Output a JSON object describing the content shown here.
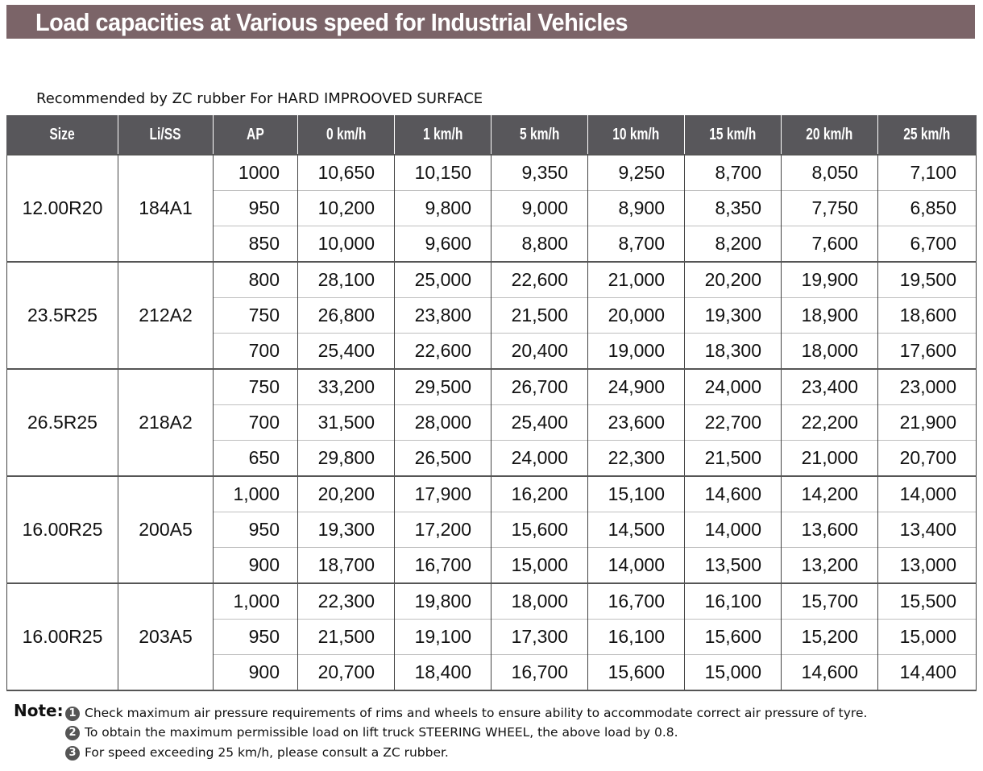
{
  "title": "Load capacities at Various speed for Industrial Vehicles",
  "subtitle": "Recommended by ZC rubber For HARD IMPROOVED SURFACE",
  "colors": {
    "title_bar": "#7b6468",
    "header_bg": "#58575b"
  },
  "table": {
    "headers": [
      "Size",
      "Li/SS",
      "AP",
      "0 km/h",
      "1 km/h",
      "5 km/h",
      "10 km/h",
      "15 km/h",
      "20 km/h",
      "25 km/h"
    ],
    "groups": [
      {
        "size": "12.00R20",
        "liss": "184A1",
        "rows": [
          [
            "1000",
            "10,650",
            "10,150",
            "9,350",
            "9,250",
            "8,700",
            "8,050",
            "7,100"
          ],
          [
            "950",
            "10,200",
            "9,800",
            "9,000",
            "8,900",
            "8,350",
            "7,750",
            "6,850"
          ],
          [
            "850",
            "10,000",
            "9,600",
            "8,800",
            "8,700",
            "8,200",
            "7,600",
            "6,700"
          ]
        ]
      },
      {
        "size": "23.5R25",
        "liss": "212A2",
        "rows": [
          [
            "800",
            "28,100",
            "25,000",
            "22,600",
            "21,000",
            "20,200",
            "19,900",
            "19,500"
          ],
          [
            "750",
            "26,800",
            "23,800",
            "21,500",
            "20,000",
            "19,300",
            "18,900",
            "18,600"
          ],
          [
            "700",
            "25,400",
            "22,600",
            "20,400",
            "19,000",
            "18,300",
            "18,000",
            "17,600"
          ]
        ]
      },
      {
        "size": "26.5R25",
        "liss": "218A2",
        "rows": [
          [
            "750",
            "33,200",
            "29,500",
            "26,700",
            "24,900",
            "24,000",
            "23,400",
            "23,000"
          ],
          [
            "700",
            "31,500",
            "28,000",
            "25,400",
            "23,600",
            "22,700",
            "22,200",
            "21,900"
          ],
          [
            "650",
            "29,800",
            "26,500",
            "24,000",
            "22,300",
            "21,500",
            "21,000",
            "20,700"
          ]
        ]
      },
      {
        "size": "16.00R25",
        "liss": "200A5",
        "rows": [
          [
            "1,000",
            "20,200",
            "17,900",
            "16,200",
            "15,100",
            "14,600",
            "14,200",
            "14,000"
          ],
          [
            "950",
            "19,300",
            "17,200",
            "15,600",
            "14,500",
            "14,000",
            "13,600",
            "13,400"
          ],
          [
            "900",
            "18,700",
            "16,700",
            "15,000",
            "14,000",
            "13,500",
            "13,200",
            "13,000"
          ]
        ]
      },
      {
        "size": "16.00R25",
        "liss": "203A5",
        "rows": [
          [
            "1,000",
            "22,300",
            "19,800",
            "18,000",
            "16,700",
            "16,100",
            "15,700",
            "15,500"
          ],
          [
            "950",
            "21,500",
            "19,100",
            "17,300",
            "16,100",
            "15,600",
            "15,200",
            "15,000"
          ],
          [
            "900",
            "20,700",
            "18,400",
            "16,700",
            "15,600",
            "15,000",
            "14,600",
            "14,400"
          ]
        ]
      }
    ]
  },
  "notes": {
    "label": "Note:",
    "items": [
      {
        "num": "1",
        "text": "Check maximum air pressure requirements of rims and wheels to ensure ability to accommodate correct air pressure of tyre."
      },
      {
        "num": "2",
        "text": "To obtain the maximum permissible load on lift truck STEERING WHEEL, the above load by 0.8."
      },
      {
        "num": "3",
        "text": "For speed exceeding 25 km/h, please consult a ZC rubber."
      }
    ]
  }
}
